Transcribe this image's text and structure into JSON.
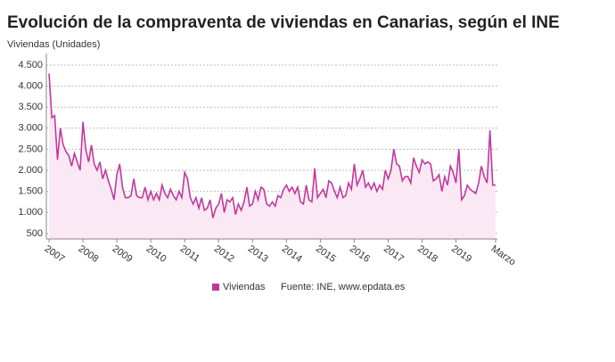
{
  "chart_data": {
    "type": "area-line",
    "title": "Evolución de la compraventa de viviendas en Canarias, según el INE",
    "y_label": "Viviendas (Unidades)",
    "source": "Fuente: INE, www.epdata.es",
    "categories": [
      "2007",
      null,
      null,
      null,
      null,
      null,
      null,
      null,
      null,
      null,
      null,
      null,
      "2008",
      null,
      null,
      null,
      null,
      null,
      null,
      null,
      null,
      null,
      null,
      null,
      "2009",
      null,
      null,
      null,
      null,
      null,
      null,
      null,
      null,
      null,
      null,
      null,
      "2010",
      null,
      null,
      null,
      null,
      null,
      null,
      null,
      null,
      null,
      null,
      null,
      "2011",
      null,
      null,
      null,
      null,
      null,
      null,
      null,
      null,
      null,
      null,
      null,
      "2012",
      null,
      null,
      null,
      null,
      null,
      null,
      null,
      null,
      null,
      null,
      null,
      "2013",
      null,
      null,
      null,
      null,
      null,
      null,
      null,
      null,
      null,
      null,
      null,
      "2014",
      null,
      null,
      null,
      null,
      null,
      null,
      null,
      null,
      null,
      null,
      null,
      "2015",
      null,
      null,
      null,
      null,
      null,
      null,
      null,
      null,
      null,
      null,
      null,
      "2016",
      null,
      null,
      null,
      null,
      null,
      null,
      null,
      null,
      null,
      null,
      null,
      "2017",
      null,
      null,
      null,
      null,
      null,
      null,
      null,
      null,
      null,
      null,
      null,
      "2018",
      null,
      null,
      null,
      null,
      null,
      null,
      null,
      null,
      null,
      null,
      null,
      "2019",
      null,
      null,
      null,
      null,
      null,
      null,
      null,
      null,
      null,
      null,
      null,
      null,
      null,
      "Marzo"
    ],
    "series": [
      {
        "name": "Viviendas",
        "color": "#c1399d",
        "fill": "#fbe8f5",
        "values": [
          4300,
          3250,
          3300,
          2250,
          3000,
          2600,
          2450,
          2350,
          2100,
          2400,
          2200,
          2000,
          3150,
          2500,
          2200,
          2600,
          2150,
          2000,
          2200,
          1800,
          2000,
          1750,
          1550,
          1300,
          1900,
          2150,
          1600,
          1350,
          1350,
          1400,
          1800,
          1400,
          1350,
          1350,
          1600,
          1300,
          1500,
          1300,
          1450,
          1300,
          1650,
          1450,
          1350,
          1550,
          1400,
          1300,
          1500,
          1350,
          1950,
          1800,
          1350,
          1200,
          1350,
          1100,
          1350,
          1050,
          1100,
          1300,
          870,
          1100,
          1200,
          1450,
          1000,
          1300,
          1250,
          1350,
          950,
          1200,
          1050,
          1250,
          1600,
          1150,
          1200,
          1500,
          1300,
          1600,
          1550,
          1200,
          1150,
          1250,
          1150,
          1400,
          1350,
          1550,
          1650,
          1500,
          1600,
          1450,
          1600,
          1250,
          1200,
          1650,
          1300,
          1250,
          2050,
          1350,
          1450,
          1550,
          1350,
          1750,
          1700,
          1500,
          1350,
          1600,
          1350,
          1400,
          1700,
          1550,
          2150,
          1650,
          1800,
          2000,
          1600,
          1700,
          1550,
          1700,
          1500,
          1650,
          1550,
          2000,
          1800,
          2000,
          2500,
          2150,
          2100,
          1750,
          1850,
          1850,
          1700,
          2300,
          2100,
          1950,
          2250,
          2150,
          2200,
          2150,
          1750,
          1800,
          1900,
          1500,
          1850,
          1650,
          2100,
          1950,
          1700,
          2500,
          1300,
          1400,
          1650,
          1550,
          1500,
          1450,
          1700,
          2100,
          1850,
          1700,
          2950,
          1650,
          1650
        ]
      }
    ],
    "ylim": [
      370,
      4690
    ],
    "yticks": [
      {
        "value": 500,
        "label": "500"
      },
      {
        "value": 1000,
        "label": "1.000"
      },
      {
        "value": 1500,
        "label": "1.500"
      },
      {
        "value": 2000,
        "label": "2.000"
      },
      {
        "value": 2500,
        "label": "2.500"
      },
      {
        "value": 3000,
        "label": "3.000"
      },
      {
        "value": 3500,
        "label": "3.500"
      },
      {
        "value": 4000,
        "label": "4.000"
      },
      {
        "value": 4500,
        "label": "4.500"
      }
    ],
    "grid": true
  }
}
